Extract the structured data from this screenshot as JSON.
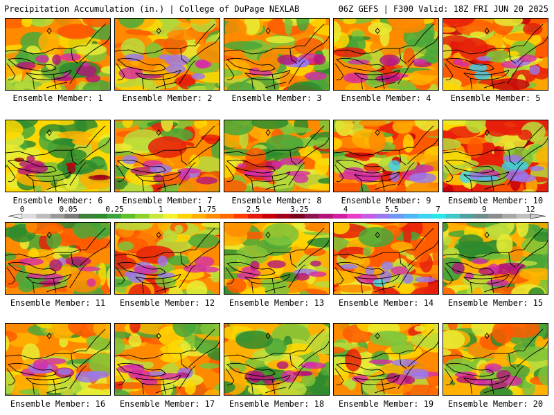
{
  "header": {
    "title_left": "Precipitation Accumulation (in.) | College of DuPage NEXLAB",
    "title_right": "06Z GEFS | F300 Valid: 18Z FRI JUN 20 2025"
  },
  "colorbar": {
    "tick_labels": [
      "0",
      "0.05",
      "0.25",
      "1",
      "1.75",
      "2.5",
      "3.25",
      "4",
      "5.5",
      "7",
      "9",
      "12"
    ],
    "colors": [
      "#dcdcdc",
      "#bdbdbd",
      "#9a9a9a",
      "#7a7a7a",
      "#3b7f3b",
      "#2e8b2e",
      "#3ca23c",
      "#5fbf2a",
      "#8ed12a",
      "#c8e63c",
      "#f2f230",
      "#ffd400",
      "#ffb000",
      "#ff8c00",
      "#ff6a00",
      "#ff3c00",
      "#e61a0a",
      "#c8000a",
      "#a0001a",
      "#7a001e",
      "#8c1450",
      "#b4147a",
      "#d21ea0",
      "#e63cc8",
      "#c85ae6",
      "#9a78f0",
      "#6e96f5",
      "#50b4f5",
      "#3cd2f0",
      "#28e6e6",
      "#3cc8c8",
      "#50a0a0",
      "#6e8c8c",
      "#8c8c8c",
      "#a8a8a8",
      "#c0c0c0"
    ]
  },
  "panels": [
    {
      "label": "Ensemble Member: 1"
    },
    {
      "label": "Ensemble Member: 2"
    },
    {
      "label": "Ensemble Member: 3"
    },
    {
      "label": "Ensemble Member: 4"
    },
    {
      "label": "Ensemble Member: 5"
    },
    {
      "label": "Ensemble Member: 6"
    },
    {
      "label": "Ensemble Member: 7"
    },
    {
      "label": "Ensemble Member: 8"
    },
    {
      "label": "Ensemble Member: 9"
    },
    {
      "label": "Ensemble Member: 10"
    },
    {
      "label": "Ensemble Member: 11"
    },
    {
      "label": "Ensemble Member: 12"
    },
    {
      "label": "Ensemble Member: 13"
    },
    {
      "label": "Ensemble Member: 14"
    },
    {
      "label": "Ensemble Member: 15"
    },
    {
      "label": "Ensemble Member: 16"
    },
    {
      "label": "Ensemble Member: 17"
    },
    {
      "label": "Ensemble Member: 18"
    },
    {
      "label": "Ensemble Member: 19"
    },
    {
      "label": "Ensemble Member: 20"
    }
  ]
}
